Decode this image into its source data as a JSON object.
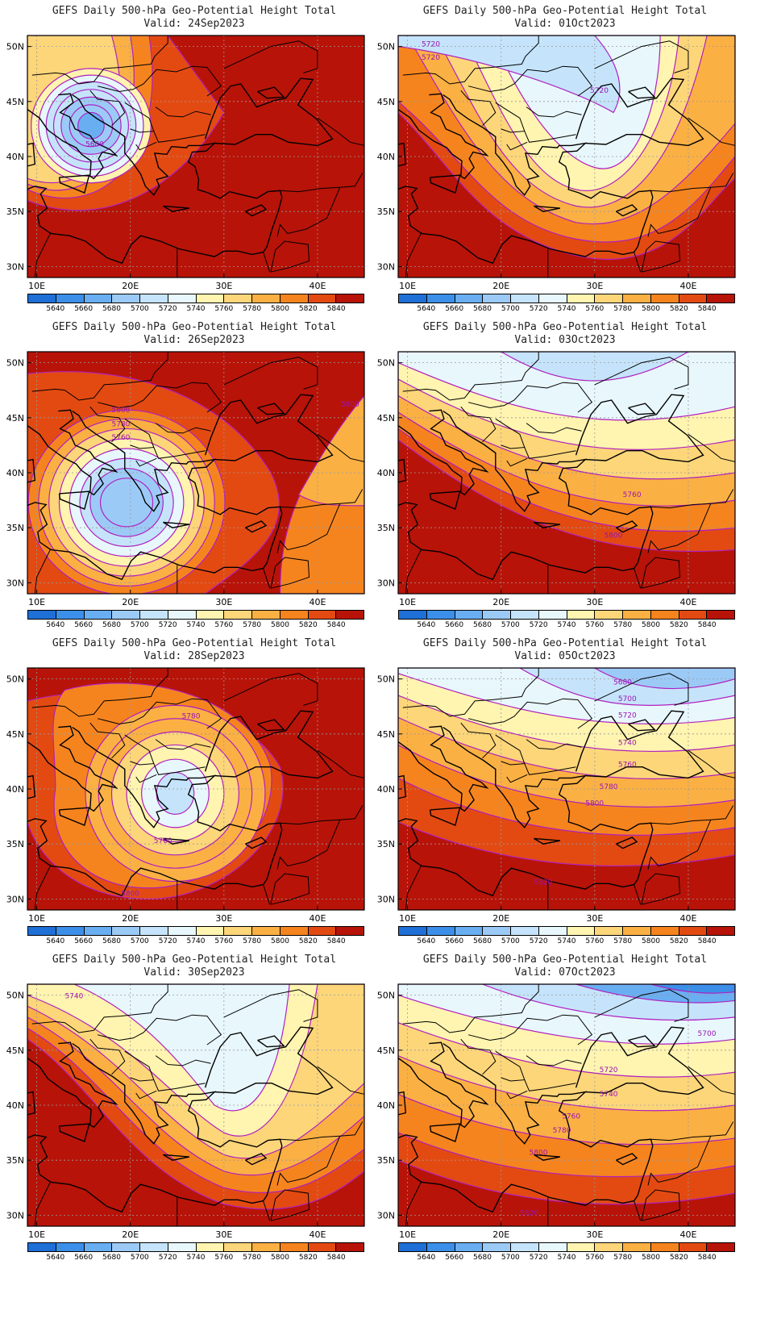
{
  "colorbar": {
    "levels": [
      "5640",
      "5660",
      "5680",
      "5700",
      "5720",
      "5740",
      "5760",
      "5780",
      "5800",
      "5820",
      "5840"
    ],
    "colors": [
      "#1e6fd6",
      "#3c8fe8",
      "#6aaef2",
      "#9ccaf7",
      "#c5e4fb",
      "#e8f7fc",
      "#fff4b0",
      "#fdd67a",
      "#fbb044",
      "#f6841e",
      "#e34a12",
      "#b81308"
    ]
  },
  "axes": {
    "lat_labels": [
      "50N",
      "45N",
      "40N",
      "35N",
      "30N"
    ],
    "lon_labels": [
      "10E",
      "20E",
      "30E",
      "40E"
    ]
  },
  "panels": [
    {
      "title": "GEFS Daily 500-hPa Geo-Potential Height Total",
      "valid": "Valid: 24Sep2023",
      "contour_labels": [
        "5680"
      ],
      "pattern": "closed low centred near 16E 42N; blue core, warm red east and south"
    },
    {
      "title": "GEFS Daily 500-hPa Geo-Potential Height Total",
      "valid": "Valid: 01Oct2023",
      "contour_labels": [
        "5720",
        "5720",
        "5720"
      ],
      "pattern": "trough over Balkans/Black Sea, ridge west over Italy and south"
    },
    {
      "title": "GEFS Daily 500-hPa Geo-Potential Height Total",
      "valid": "Valid: 26Sep2023",
      "contour_labels": [
        "5800",
        "5800",
        "5780",
        "5760"
      ],
      "pattern": "closed low centred near 20E 37N over Ionian Sea"
    },
    {
      "title": "GEFS Daily 500-hPa Geo-Potential Height Total",
      "valid": "Valid: 03Oct2023",
      "contour_labels": [
        "5760",
        "5800"
      ],
      "pattern": "zonal gradient, low heights north-east, high heights south-west"
    },
    {
      "title": "GEFS Daily 500-hPa Geo-Potential Height Total",
      "valid": "Valid: 28Sep2023",
      "contour_labels": [
        "5780",
        "5760",
        "5800"
      ],
      "pattern": "weak closed low near 25E 39N over Aegean"
    },
    {
      "title": "GEFS Daily 500-hPa Geo-Potential Height Total",
      "valid": "Valid: 05Oct2023",
      "contour_labels": [
        "5680",
        "5700",
        "5720",
        "5740",
        "5760",
        "5780",
        "5800",
        "5820"
      ],
      "pattern": "NW flow, low heights north-east corner"
    },
    {
      "title": "GEFS Daily 500-hPa Geo-Potential Height Total",
      "valid": "Valid: 30Sep2023",
      "contour_labels": [
        "5740"
      ],
      "pattern": "trough over Black Sea region, ridge west"
    },
    {
      "title": "GEFS Daily 500-hPa Geo-Potential Height Total",
      "valid": "Valid: 07Oct2023",
      "contour_labels": [
        "5700",
        "5720",
        "5740",
        "5760",
        "5780",
        "5800",
        "5820"
      ],
      "pattern": "deep low heights north-east, strong gradient"
    }
  ]
}
